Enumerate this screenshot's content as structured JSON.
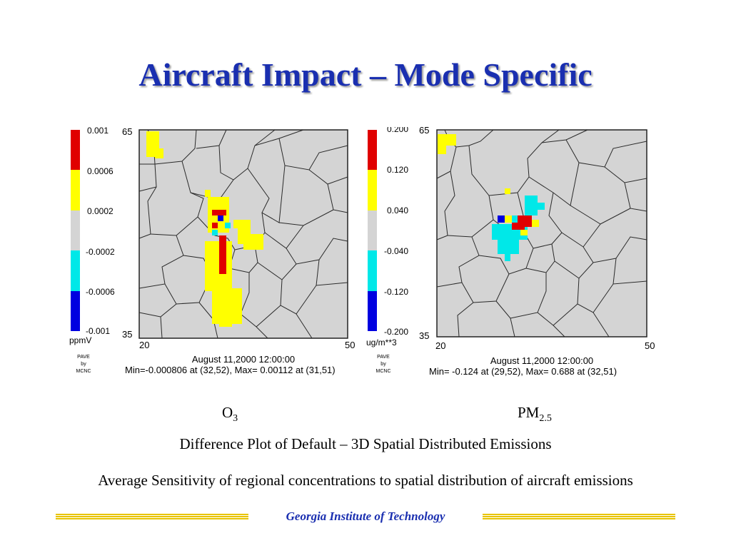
{
  "slide": {
    "title": "Aircraft Impact – Mode Specific",
    "subtitle_line": "Difference Plot of Default – 3D Spatial Distributed Emissions",
    "summary_line": "Average Sensitivity of regional concentrations to spatial distribution of aircraft emissions",
    "footer": "Georgia Institute of Technology"
  },
  "colors": {
    "title": "#1a2fb0",
    "red": "#e00000",
    "yellow": "#ffff00",
    "gray": "#d4d4d4",
    "cyan": "#00e8e8",
    "blue": "#0000e0",
    "footer_line": "#e8c400"
  },
  "chart_data": [
    {
      "type": "heatmap",
      "caption": "O",
      "caption_sub": "3",
      "legend_labels": [
        "0.001",
        "0.0006",
        "0.0002",
        "-0.0002",
        "-0.0006",
        "-0.001"
      ],
      "unit": "ppmV",
      "x_ticks": [
        "20",
        "50"
      ],
      "y_ticks": [
        "65",
        "35"
      ],
      "credit": [
        "PAVE",
        "by",
        "MCNC"
      ],
      "timestamp": "August 11,2000 12:00:00",
      "minmax": "Min=-0.000806 at (32,52), Max= 0.00112 at (31,51)"
    },
    {
      "type": "heatmap",
      "caption": "PM",
      "caption_sub": "2.5",
      "legend_labels": [
        "0.200",
        "0.120",
        "0.040",
        "-0.040",
        "-0.120",
        "-0.200"
      ],
      "unit": "ug/m**3",
      "x_ticks": [
        "20",
        "50"
      ],
      "y_ticks": [
        "65",
        "35"
      ],
      "credit": [
        "PAVE",
        "by",
        "MCNC"
      ],
      "timestamp": "August 11,2000 12:00:00",
      "minmax": "Min=  -0.124 at (29,52), Max=   0.688 at (32,51)"
    }
  ]
}
